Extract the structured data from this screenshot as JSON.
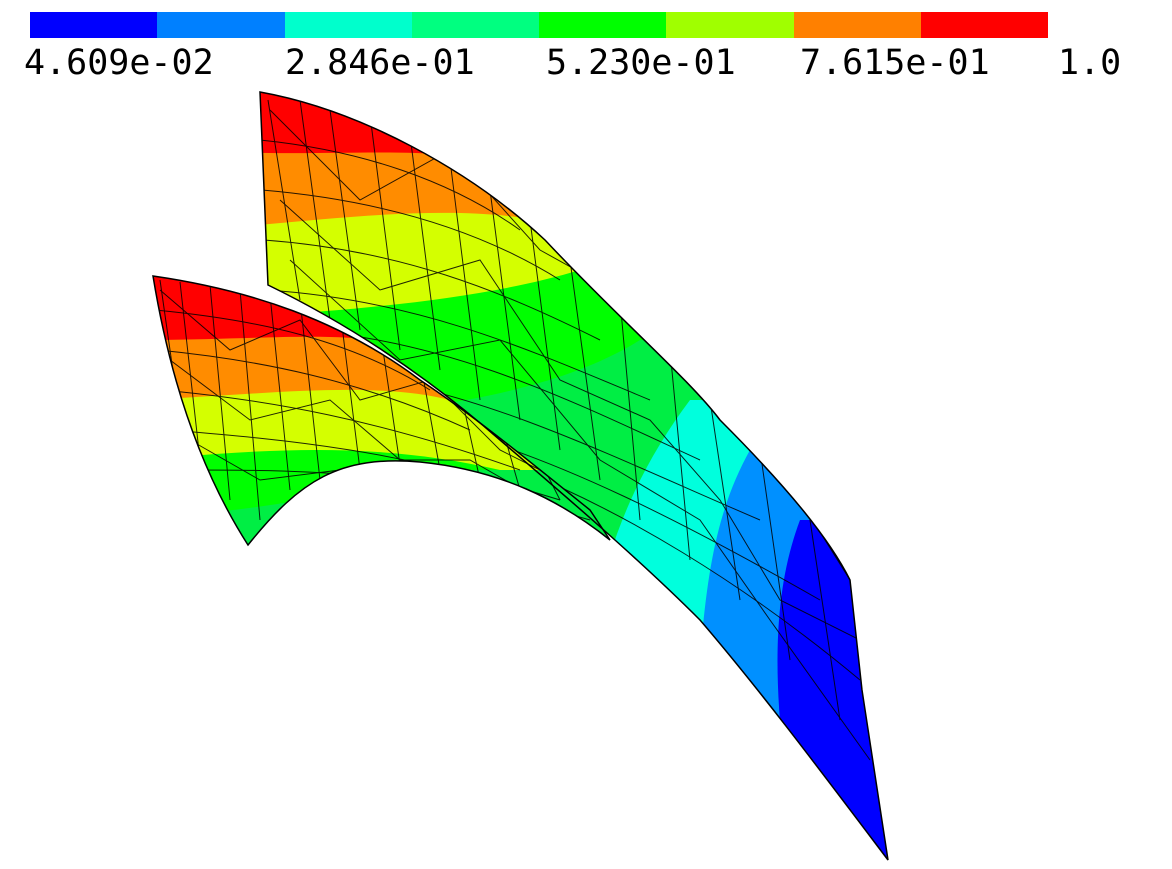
{
  "colorbar": {
    "colors": [
      "#0000ff",
      "#0080ff",
      "#00ffcc",
      "#00ff80",
      "#00ff00",
      "#a0ff00",
      "#ff8000",
      "#ff0000"
    ],
    "tick_labels": [
      "4.609e-02",
      "2.846e-01",
      "5.230e-01",
      "7.615e-01",
      "1.0"
    ]
  },
  "scene": {
    "description_colors": {
      "red": "#ff0000",
      "orange": "#ff8c00",
      "yellow": "#d4ff00",
      "green": "#00ff00",
      "spring_green": "#00ee44",
      "cyan": "#00ffdd",
      "azure": "#0090ff",
      "blue": "#0000ff"
    }
  }
}
